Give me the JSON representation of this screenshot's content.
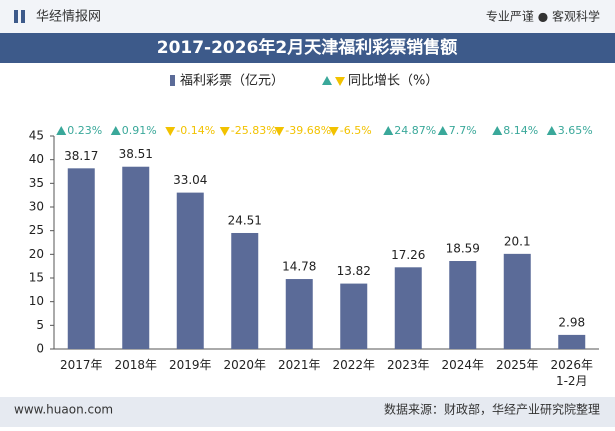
{
  "header": {
    "brand": "华经情报网",
    "slogan": "专业严谨 ● 客观科学"
  },
  "chart_data": {
    "type": "bar",
    "title": "2017-2026年2月天津福利彩票销售额",
    "categories": [
      "2017年",
      "2018年",
      "2019年",
      "2020年",
      "2021年",
      "2022年",
      "2023年",
      "2024年",
      "2025年",
      "2026年\n1-2月"
    ],
    "series": [
      {
        "name": "福利彩票（亿元）",
        "color": "#5b6b98",
        "values": [
          38.17,
          38.51,
          33.04,
          24.51,
          14.78,
          13.82,
          17.26,
          18.59,
          20.1,
          2.98
        ]
      },
      {
        "name": "同比增长（%）",
        "color": "#3aa89a",
        "down_color": "#f2c200",
        "values": [
          0.23,
          0.91,
          -0.14,
          -25.83,
          -39.68,
          -6.5,
          24.87,
          7.7,
          8.14,
          3.65
        ],
        "value_labels": [
          "0.23%",
          "0.91%",
          "-0.14%",
          "-25.83%",
          "-39.68%",
          "-6.5%",
          "24.87%",
          "7.7%",
          "8.14%",
          "3.65%"
        ]
      }
    ],
    "ylim": [
      0,
      45
    ],
    "yticks": [
      0,
      5,
      10,
      15,
      20,
      25,
      30,
      35,
      40,
      45
    ],
    "grid": false
  },
  "footer": {
    "site": "www.huaon.com",
    "source": "数据来源：财政部，华经产业研究院整理"
  }
}
